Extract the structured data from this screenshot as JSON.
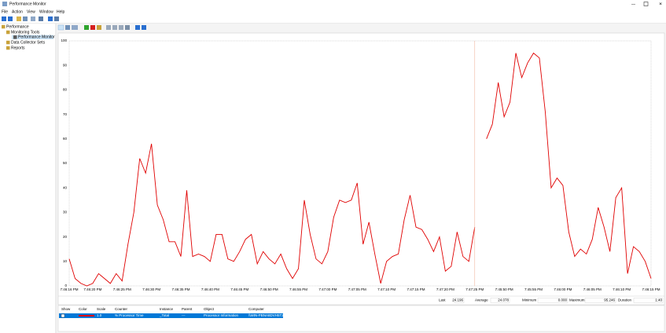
{
  "window": {
    "title": "Performance Monitor"
  },
  "menu": [
    "File",
    "Action",
    "View",
    "Window",
    "Help"
  ],
  "tree": [
    "Performance",
    "Monitoring Tools",
    "Performance Monitor",
    "Data Collector Sets",
    "Reports"
  ],
  "chart_data": {
    "type": "line",
    "color": "#e00000",
    "grid": false,
    "categories": [
      "7:46:16 PM",
      null,
      null,
      null,
      "7:46:20 PM",
      null,
      null,
      null,
      null,
      "7:46:25 PM",
      null,
      null,
      null,
      null,
      "7:46:30 PM",
      null,
      null,
      null,
      null,
      "7:46:35 PM",
      null,
      null,
      null,
      null,
      "7:46:40 PM",
      null,
      null,
      null,
      null,
      "7:46:45 PM",
      null,
      null,
      null,
      null,
      "7:46:50 PM",
      null,
      null,
      null,
      null,
      "7:46:55 PM",
      null,
      null,
      null,
      null,
      "7:47:00 PM",
      null,
      null,
      null,
      null,
      "7:47:05 PM",
      null,
      null,
      null,
      null,
      "7:47:10 PM",
      null,
      null,
      null,
      null,
      "7:47:15 PM",
      null,
      null,
      null,
      null,
      "7:47:20 PM",
      null,
      null,
      null,
      null,
      "7:47:25 PM",
      null,
      null,
      null,
      null,
      "7:45:50 PM",
      null,
      null,
      null,
      null,
      "7:45:55 PM",
      null,
      null,
      null,
      null,
      "7:46:00 PM",
      null,
      null,
      null,
      null,
      "7:46:05 PM",
      null,
      null,
      null,
      null,
      "7:46:10 PM",
      null,
      null,
      null,
      null,
      "7:46:15 PM"
    ],
    "values": [
      11,
      3,
      1,
      0,
      1,
      5,
      3,
      1,
      5,
      2,
      17,
      30,
      52,
      46,
      58,
      33,
      27,
      18,
      18,
      12,
      39,
      12,
      13,
      12,
      10,
      21,
      21,
      11,
      10,
      14,
      19,
      21,
      9,
      14,
      11,
      9,
      13,
      7,
      3,
      7,
      35,
      21,
      11,
      9,
      14,
      28,
      35,
      34,
      35,
      42,
      17,
      26,
      13,
      1,
      10,
      12,
      13,
      27,
      37,
      24,
      23,
      19,
      14,
      20,
      6,
      8,
      22,
      12,
      10,
      24,
      null,
      60,
      66,
      83,
      69,
      75,
      95,
      85,
      91,
      95,
      93,
      71,
      40,
      44,
      41,
      22,
      12,
      15,
      13,
      19,
      32,
      24,
      14,
      36,
      40,
      5,
      16,
      14,
      10,
      3
    ],
    "ylim": [
      0,
      100
    ],
    "yticks": [
      0,
      10,
      20,
      30,
      40,
      50,
      60,
      70,
      80,
      90,
      100
    ]
  },
  "stats": {
    "labels": [
      "Last",
      "Average",
      "Minimum",
      "Maximum",
      "Duration"
    ],
    "values": [
      "24.196",
      "24.078",
      "0.000",
      "95.246",
      "1:40"
    ]
  },
  "counters": {
    "headers": [
      "Show",
      "Color",
      "Scale",
      "Counter",
      "Instance",
      "Parent",
      "Object",
      "Computer"
    ],
    "rows": [
      [
        "1.0",
        "% Processor Time",
        "_Total",
        "---",
        "Processor Information",
        "\\\\WIN-PBNA8DVH5T2"
      ]
    ]
  }
}
